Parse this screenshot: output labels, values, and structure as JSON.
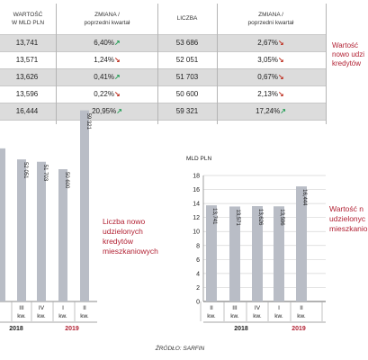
{
  "table": {
    "headers": {
      "wartosc_line1": "WARTOŚĆ",
      "wartosc_line2": "W MLD PLN",
      "zmiana_line1": "ZMIANA /",
      "zmiana_line2": "poprzedni kwartał",
      "liczba": "LICZBA",
      "zmiana2_line1": "ZMIANA /",
      "zmiana2_line2": "poprzedni kwartał"
    },
    "rows": [
      {
        "value": "13,741",
        "change1": "6,40%",
        "dir1": "up",
        "count": "53 686",
        "change2": "2,67%",
        "dir2": "down"
      },
      {
        "value": "13,571",
        "change1": "1,24%",
        "dir1": "down",
        "count": "52 051",
        "change2": "3,05%",
        "dir2": "down"
      },
      {
        "value": "13,626",
        "change1": "0,41%",
        "dir1": "up",
        "count": "51 703",
        "change2": "0,67%",
        "dir2": "down"
      },
      {
        "value": "13,596",
        "change1": "0,22%",
        "dir1": "down",
        "count": "50 600",
        "change2": "2,13%",
        "dir2": "down"
      },
      {
        "value": "16,444",
        "change1": "20,95%",
        "dir1": "up",
        "count": "59 321",
        "change2": "17,24%",
        "dir2": "up"
      }
    ],
    "side_label_lines": [
      "Wartość",
      "nowo udzi",
      "kredytów"
    ]
  },
  "left_chart_label_lines": [
    "Liczba nowo",
    "udzielonych",
    "kredytów",
    "mieszkaniowych"
  ],
  "right_chart_label_lines": [
    "Wartość n",
    "udzielonyc",
    "mieszkanio"
  ],
  "source": "ŹRÓDŁO: SARFIN",
  "colors": {
    "bar": "#b9bdc6",
    "up": "#2aa05a",
    "down": "#c0392b",
    "label": "#b22234",
    "shade": "#dcdcdc"
  },
  "chart_data": [
    {
      "type": "bar",
      "title": "",
      "ylabel": "",
      "categories": [
        "",
        "III kw.",
        "IV kw.",
        "I kw.",
        "II kw."
      ],
      "quarter_lines": [
        [
          "",
          ""
        ],
        [
          "III",
          "kw."
        ],
        [
          "IV",
          "kw."
        ],
        [
          "I",
          "kw."
        ],
        [
          "II",
          "kw."
        ]
      ],
      "year_labels": [
        {
          "label": "2018",
          "span": [
            0,
            2
          ]
        },
        {
          "label": "2019",
          "span": [
            3,
            4
          ]
        }
      ],
      "values": [
        53686,
        52051,
        51703,
        50600,
        59321
      ],
      "value_labels": [
        "",
        "52 051",
        "51 703",
        "50 600",
        "59 321"
      ]
    },
    {
      "type": "bar",
      "title": "",
      "ylabel": "MLD PLN",
      "ylim": [
        0,
        18
      ],
      "yticks": [
        0,
        2,
        4,
        6,
        8,
        10,
        12,
        14,
        16,
        18
      ],
      "grid": true,
      "categories": [
        "II kw.",
        "III kw.",
        "IV kw.",
        "I kw.",
        "II kw."
      ],
      "quarter_lines": [
        [
          "II",
          "kw."
        ],
        [
          "III",
          "kw."
        ],
        [
          "IV",
          "kw."
        ],
        [
          "I",
          "kw."
        ],
        [
          "II",
          "kw."
        ]
      ],
      "year_labels": [
        {
          "label": "2018",
          "span": [
            0,
            2
          ]
        },
        {
          "label": "2019",
          "span": [
            3,
            4
          ]
        }
      ],
      "values": [
        13.741,
        13.571,
        13.626,
        13.596,
        16.444
      ],
      "value_labels": [
        "13,741",
        "13,571",
        "13,626",
        "13,596",
        "16,444"
      ]
    }
  ]
}
